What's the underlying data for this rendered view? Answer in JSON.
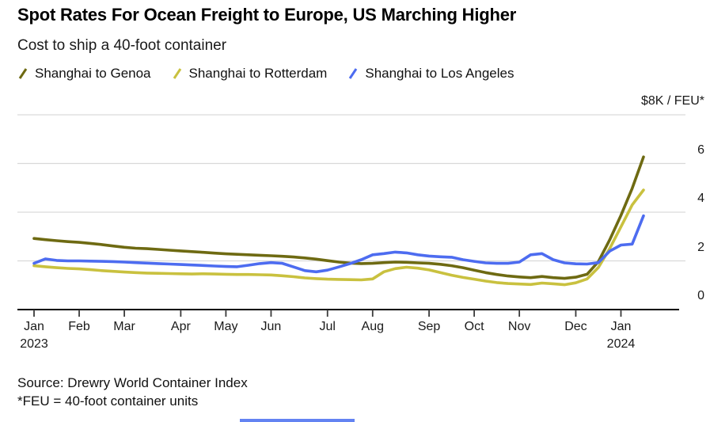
{
  "chart_data": {
    "type": "line",
    "title": "Spot Rates For Ocean Freight to Europe, US Marching Higher",
    "subtitle": "Cost to ship a 40-foot container",
    "unit_label": "$8K / FEU*",
    "ylim": [
      0,
      8
    ],
    "grid": true,
    "legend_position": "top-left",
    "y_ticks": [
      {
        "value": 8,
        "label": "$8K / FEU*"
      },
      {
        "value": 6,
        "label": "6"
      },
      {
        "value": 4,
        "label": "4"
      },
      {
        "value": 2,
        "label": "2"
      },
      {
        "value": 0,
        "label": "0"
      }
    ],
    "x_axis": {
      "unit": "weekly observations, Jan 2023 - Jan 2024",
      "month_ticks": [
        {
          "label": "Jan",
          "year": "2023",
          "week_index": 0
        },
        {
          "label": "Feb",
          "week_index": 4
        },
        {
          "label": "Mar",
          "week_index": 8
        },
        {
          "label": "Apr",
          "week_index": 13
        },
        {
          "label": "May",
          "week_index": 17
        },
        {
          "label": "Jun",
          "week_index": 21
        },
        {
          "label": "Jul",
          "week_index": 26
        },
        {
          "label": "Aug",
          "week_index": 30
        },
        {
          "label": "Sep",
          "week_index": 35
        },
        {
          "label": "Oct",
          "week_index": 39
        },
        {
          "label": "Nov",
          "week_index": 43
        },
        {
          "label": "Dec",
          "week_index": 48
        },
        {
          "label": "Jan",
          "year": "2024",
          "week_index": 52
        }
      ]
    },
    "series": [
      {
        "name": "Shanghai to Genoa",
        "color": "#6e6a12",
        "values": [
          2.92,
          2.87,
          2.83,
          2.79,
          2.76,
          2.72,
          2.67,
          2.61,
          2.56,
          2.52,
          2.5,
          2.47,
          2.44,
          2.41,
          2.38,
          2.35,
          2.32,
          2.29,
          2.27,
          2.25,
          2.23,
          2.21,
          2.19,
          2.16,
          2.12,
          2.07,
          2.01,
          1.95,
          1.91,
          1.89,
          1.9,
          1.93,
          1.95,
          1.94,
          1.92,
          1.9,
          1.86,
          1.8,
          1.72,
          1.62,
          1.52,
          1.44,
          1.38,
          1.34,
          1.31,
          1.36,
          1.31,
          1.28,
          1.33,
          1.45,
          1.97,
          2.86,
          3.87,
          4.98,
          6.27
        ]
      },
      {
        "name": "Shanghai to Rotterdam",
        "color": "#c9c13f",
        "values": [
          1.8,
          1.76,
          1.72,
          1.69,
          1.67,
          1.64,
          1.6,
          1.57,
          1.54,
          1.52,
          1.5,
          1.49,
          1.48,
          1.47,
          1.46,
          1.47,
          1.46,
          1.45,
          1.44,
          1.44,
          1.43,
          1.42,
          1.39,
          1.35,
          1.3,
          1.27,
          1.25,
          1.24,
          1.23,
          1.22,
          1.26,
          1.55,
          1.68,
          1.74,
          1.7,
          1.63,
          1.52,
          1.41,
          1.32,
          1.25,
          1.17,
          1.11,
          1.07,
          1.05,
          1.03,
          1.09,
          1.06,
          1.02,
          1.1,
          1.26,
          1.73,
          2.5,
          3.4,
          4.3,
          4.91
        ]
      },
      {
        "name": "Shanghai to Los Angeles",
        "color": "#4d6cf0",
        "values": [
          1.9,
          2.08,
          2.02,
          2.0,
          2.0,
          1.99,
          1.98,
          1.97,
          1.95,
          1.93,
          1.91,
          1.89,
          1.87,
          1.85,
          1.83,
          1.81,
          1.79,
          1.77,
          1.76,
          1.82,
          1.89,
          1.93,
          1.9,
          1.75,
          1.6,
          1.55,
          1.62,
          1.75,
          1.89,
          2.05,
          2.25,
          2.3,
          2.36,
          2.33,
          2.25,
          2.2,
          2.17,
          2.15,
          2.05,
          1.98,
          1.92,
          1.9,
          1.9,
          1.95,
          2.25,
          2.3,
          2.05,
          1.92,
          1.88,
          1.87,
          1.93,
          2.4,
          2.65,
          2.69,
          3.85
        ]
      }
    ],
    "source": "Source: Drewry World Container Index",
    "footnote": "*FEU = 40-foot container units"
  }
}
